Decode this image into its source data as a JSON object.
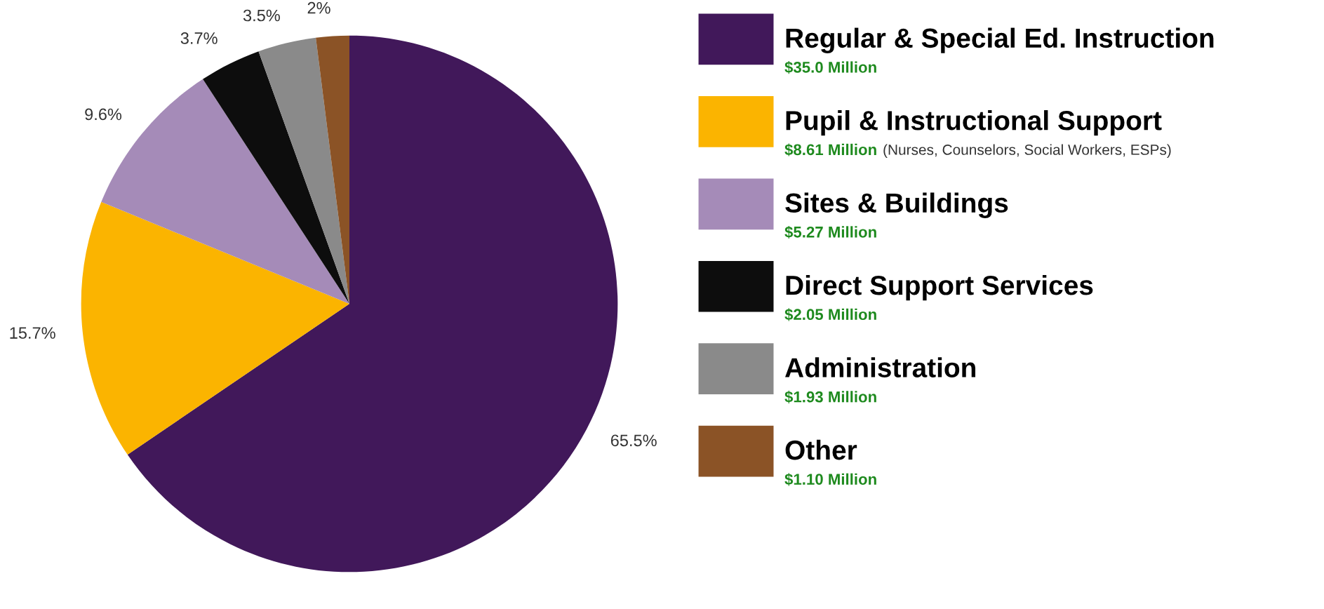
{
  "chart_data": {
    "type": "pie",
    "categories": [
      "Regular & Special Ed. Instruction",
      "Pupil & Instructional Support",
      "Sites & Buildings",
      "Direct Support Services",
      "Administration",
      "Other"
    ],
    "values": [
      65.5,
      15.7,
      9.6,
      3.7,
      3.5,
      2
    ],
    "value_labels": [
      "65.5%",
      "15.7%",
      "9.6%",
      "3.7%",
      "3.5%",
      "2%"
    ],
    "colors": [
      "#41185a",
      "#fbb400",
      "#a58bb8",
      "#0d0d0d",
      "#8a8a8a",
      "#8b5326"
    ],
    "legend": "right",
    "annotations": [
      "$35.0 Million",
      "$8.61 Million (Nurses, Counselors, Social Workers, ESPs)",
      "$5.27 Million",
      "$2.05 Million",
      "$1.93 Million",
      "$1.10 Million"
    ]
  }
}
